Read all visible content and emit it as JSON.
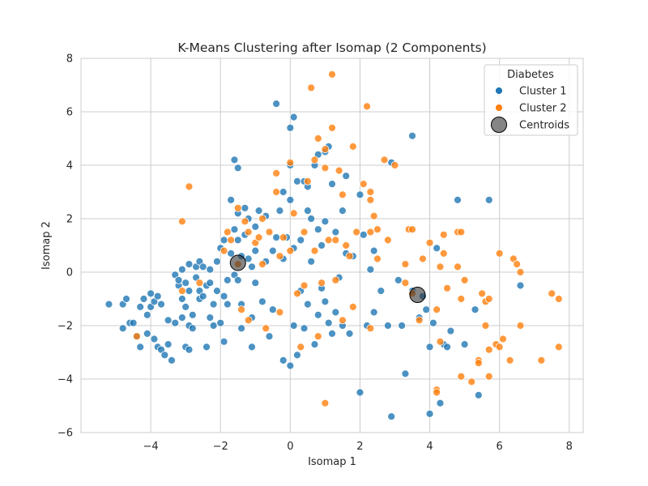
{
  "chart_data": {
    "type": "scatter",
    "title": "K-Means Clustering after Isomap (2 Components)",
    "xlabel": "Isomap 1",
    "ylabel": "Isomap 2",
    "xlim": [
      -6.0,
      8.4
    ],
    "ylim": [
      -6.0,
      8.0
    ],
    "xticks": [
      -4,
      -2,
      0,
      2,
      4,
      6,
      8
    ],
    "yticks": [
      -6,
      -4,
      -2,
      0,
      2,
      4,
      6,
      8
    ],
    "grid": true,
    "legend": {
      "title": "Diabetes",
      "position": "top-right"
    },
    "series": [
      {
        "name": "Cluster 1",
        "color": "#1f77b4",
        "points": [
          [
            -5.2,
            -1.2
          ],
          [
            -4.8,
            -1.2
          ],
          [
            -4.7,
            -1.0
          ],
          [
            -4.6,
            -1.9
          ],
          [
            -4.8,
            -2.1
          ],
          [
            -4.5,
            -1.9
          ],
          [
            -4.4,
            -2.4
          ],
          [
            -4.3,
            -1.3
          ],
          [
            -4.3,
            -2.8
          ],
          [
            -4.2,
            -1.0
          ],
          [
            -4.1,
            -1.6
          ],
          [
            -4.1,
            -2.3
          ],
          [
            -4.0,
            -0.8
          ],
          [
            -4.0,
            -1.3
          ],
          [
            -3.9,
            -2.5
          ],
          [
            -3.9,
            -1.1
          ],
          [
            -3.8,
            -0.9
          ],
          [
            -3.8,
            -2.8
          ],
          [
            -3.7,
            -2.9
          ],
          [
            -3.7,
            -1.2
          ],
          [
            -3.6,
            -3.1
          ],
          [
            -3.5,
            -2.7
          ],
          [
            -3.5,
            -1.8
          ],
          [
            -3.4,
            -3.3
          ],
          [
            -3.3,
            -0.1
          ],
          [
            -3.3,
            -1.9
          ],
          [
            -3.2,
            -0.5
          ],
          [
            -3.2,
            -0.3
          ],
          [
            -3.1,
            0.1
          ],
          [
            -3.1,
            -1.7
          ],
          [
            -3.1,
            -1.0
          ],
          [
            -3.0,
            -1.3
          ],
          [
            -3.0,
            -0.4
          ],
          [
            -3.0,
            -2.8
          ],
          [
            -2.9,
            0.3
          ],
          [
            -2.9,
            -2.9
          ],
          [
            -2.9,
            -0.7
          ],
          [
            -2.9,
            -2.0
          ],
          [
            -2.8,
            -1.6
          ],
          [
            -2.8,
            -2.1
          ],
          [
            -2.7,
            -0.2
          ],
          [
            -2.7,
            0.2
          ],
          [
            -2.6,
            0.4
          ],
          [
            -2.6,
            -0.7
          ],
          [
            -2.6,
            -1.0
          ],
          [
            -2.5,
            -0.9
          ],
          [
            -2.5,
            0.2
          ],
          [
            -2.4,
            -0.5
          ],
          [
            -2.4,
            -2.8
          ],
          [
            -2.3,
            -1.7
          ],
          [
            -2.3,
            -0.4
          ],
          [
            -2.3,
            0.1
          ],
          [
            -2.2,
            -1.2
          ],
          [
            -2.2,
            -2.0
          ],
          [
            -2.1,
            -0.7
          ],
          [
            -2.1,
            0.4
          ],
          [
            -2.0,
            -1.9
          ],
          [
            -2.0,
            0.9
          ],
          [
            -1.9,
            -0.9
          ],
          [
            -1.9,
            1.2
          ],
          [
            -1.9,
            -2.6
          ],
          [
            -1.8,
            -0.3
          ],
          [
            -1.8,
            -1.2
          ],
          [
            -1.7,
            2.7
          ],
          [
            -1.7,
            0.7
          ],
          [
            -1.6,
            4.2
          ],
          [
            -1.6,
            1.6
          ],
          [
            -1.6,
            -0.1
          ],
          [
            -1.5,
            3.9
          ],
          [
            -1.5,
            1.2
          ],
          [
            -1.5,
            2.2
          ],
          [
            -1.5,
            -0.3
          ],
          [
            -1.4,
            0.6
          ],
          [
            -1.4,
            -2.1
          ],
          [
            -1.4,
            -1.2
          ],
          [
            -1.3,
            2.4
          ],
          [
            -1.3,
            1.4
          ],
          [
            -1.2,
            2.0
          ],
          [
            -1.2,
            0.5
          ],
          [
            -1.1,
            -1.7
          ],
          [
            -1.1,
            0.2
          ],
          [
            -1.1,
            -2.8
          ],
          [
            -1.0,
            1.7
          ],
          [
            -1.0,
            0.8
          ],
          [
            -1.0,
            -0.4
          ],
          [
            -0.9,
            2.3
          ],
          [
            -0.8,
            -1.1
          ],
          [
            -0.7,
            2.1
          ],
          [
            -0.7,
            0.4
          ],
          [
            -0.6,
            -2.4
          ],
          [
            -0.5,
            -1.4
          ],
          [
            -0.5,
            0.8
          ],
          [
            -0.4,
            1.3
          ],
          [
            -0.4,
            6.3
          ],
          [
            -0.3,
            2.3
          ],
          [
            -0.2,
            3.0
          ],
          [
            -0.2,
            -3.3
          ],
          [
            -0.2,
            0.5
          ],
          [
            -0.1,
            1.3
          ],
          [
            0.0,
            5.4
          ],
          [
            0.0,
            4.0
          ],
          [
            0.0,
            2.7
          ],
          [
            0.0,
            -3.5
          ],
          [
            0.1,
            5.8
          ],
          [
            0.1,
            0.9
          ],
          [
            0.1,
            -2.0
          ],
          [
            0.2,
            3.4
          ],
          [
            0.2,
            -3.1
          ],
          [
            0.3,
            -0.7
          ],
          [
            0.3,
            1.2
          ],
          [
            0.4,
            3.4
          ],
          [
            0.4,
            -2.1
          ],
          [
            0.5,
            2.3
          ],
          [
            0.5,
            -1.2
          ],
          [
            0.5,
            3.2
          ],
          [
            0.6,
            2.0
          ],
          [
            0.6,
            0.4
          ],
          [
            0.7,
            4.0
          ],
          [
            0.7,
            -2.7
          ],
          [
            0.8,
            4.4
          ],
          [
            0.8,
            1.6
          ],
          [
            0.8,
            -1.6
          ],
          [
            0.9,
            1.0
          ],
          [
            0.9,
            -0.6
          ],
          [
            1.0,
            4.5
          ],
          [
            1.0,
            -1.1
          ],
          [
            1.0,
            1.9
          ],
          [
            1.1,
            4.7
          ],
          [
            1.1,
            -1.9
          ],
          [
            1.2,
            3.3
          ],
          [
            1.2,
            -2.3
          ],
          [
            1.3,
            1.5
          ],
          [
            1.3,
            -1.5
          ],
          [
            1.4,
            -0.2
          ],
          [
            1.5,
            2.3
          ],
          [
            1.5,
            -2.0
          ],
          [
            1.6,
            3.6
          ],
          [
            1.6,
            0.7
          ],
          [
            1.7,
            -2.3
          ],
          [
            1.8,
            0.6
          ],
          [
            2.0,
            2.9
          ],
          [
            2.0,
            -4.5
          ],
          [
            2.1,
            1.4
          ],
          [
            2.2,
            -2.0
          ],
          [
            2.3,
            0.1
          ],
          [
            2.4,
            -1.5
          ],
          [
            2.4,
            0.8
          ],
          [
            2.6,
            -0.7
          ],
          [
            2.8,
            -2.0
          ],
          [
            2.9,
            4.1
          ],
          [
            2.9,
            -5.4
          ],
          [
            3.1,
            -0.3
          ],
          [
            3.2,
            -2.0
          ],
          [
            3.3,
            -3.8
          ],
          [
            3.5,
            5.1
          ],
          [
            3.5,
            -0.7
          ],
          [
            3.7,
            -1.7
          ],
          [
            3.8,
            -0.9
          ],
          [
            3.9,
            -1.4
          ],
          [
            4.0,
            -5.3
          ],
          [
            4.0,
            -2.8
          ],
          [
            4.1,
            -1.9
          ],
          [
            4.2,
            0.9
          ],
          [
            4.3,
            -4.9
          ],
          [
            4.4,
            -2.7
          ],
          [
            4.5,
            -2.8
          ],
          [
            4.6,
            -2.2
          ],
          [
            4.8,
            2.7
          ],
          [
            5.0,
            -2.7
          ],
          [
            5.3,
            -1.4
          ],
          [
            5.4,
            -4.6
          ],
          [
            5.7,
            2.7
          ],
          [
            6.6,
            -0.5
          ]
        ]
      },
      {
        "name": "Cluster 2",
        "color": "#ff7f0e",
        "points": [
          [
            -4.4,
            -2.4
          ],
          [
            -3.1,
            1.9
          ],
          [
            -3.1,
            -0.7
          ],
          [
            -2.9,
            3.2
          ],
          [
            -2.6,
            -0.4
          ],
          [
            -1.9,
            0.8
          ],
          [
            -1.8,
            1.5
          ],
          [
            -1.7,
            1.2
          ],
          [
            -1.5,
            0.3
          ],
          [
            -1.5,
            2.4
          ],
          [
            -1.4,
            -1.4
          ],
          [
            -1.3,
            1.9
          ],
          [
            -1.2,
            1.5
          ],
          [
            -1.2,
            -1.8
          ],
          [
            -1.0,
            1.1
          ],
          [
            -0.9,
            1.3
          ],
          [
            -0.8,
            2.0
          ],
          [
            -0.8,
            0.3
          ],
          [
            -0.7,
            -2.1
          ],
          [
            -0.6,
            1.5
          ],
          [
            -0.4,
            3.0
          ],
          [
            -0.4,
            3.7
          ],
          [
            -0.3,
            0.6
          ],
          [
            -0.3,
            -1.5
          ],
          [
            -0.2,
            1.3
          ],
          [
            0.0,
            4.1
          ],
          [
            0.0,
            0.8
          ],
          [
            0.1,
            2.2
          ],
          [
            0.2,
            -0.8
          ],
          [
            0.3,
            -2.8
          ],
          [
            0.4,
            1.5
          ],
          [
            0.4,
            -0.5
          ],
          [
            0.5,
            3.4
          ],
          [
            0.6,
            6.9
          ],
          [
            0.7,
            4.2
          ],
          [
            0.7,
            0.8
          ],
          [
            0.8,
            5.0
          ],
          [
            0.8,
            -2.4
          ],
          [
            0.9,
            -0.4
          ],
          [
            1.0,
            -4.9
          ],
          [
            1.0,
            4.6
          ],
          [
            1.0,
            3.9
          ],
          [
            1.1,
            1.2
          ],
          [
            1.2,
            7.4
          ],
          [
            1.2,
            5.4
          ],
          [
            1.3,
            1.2
          ],
          [
            1.3,
            -0.3
          ],
          [
            1.4,
            3.8
          ],
          [
            1.5,
            -1.8
          ],
          [
            1.5,
            2.9
          ],
          [
            1.6,
            1.0
          ],
          [
            1.7,
            0.6
          ],
          [
            1.8,
            4.7
          ],
          [
            1.8,
            -1.3
          ],
          [
            1.9,
            1.5
          ],
          [
            2.1,
            3.3
          ],
          [
            2.2,
            6.2
          ],
          [
            2.3,
            3.0
          ],
          [
            2.3,
            2.7
          ],
          [
            2.3,
            1.5
          ],
          [
            2.3,
            -2.1
          ],
          [
            2.4,
            2.1
          ],
          [
            2.5,
            1.6
          ],
          [
            2.5,
            0.5
          ],
          [
            2.7,
            4.2
          ],
          [
            2.8,
            1.2
          ],
          [
            3.0,
            4.0
          ],
          [
            3.3,
            0.3
          ],
          [
            3.3,
            -0.4
          ],
          [
            3.4,
            1.6
          ],
          [
            3.5,
            1.6
          ],
          [
            3.5,
            -0.8
          ],
          [
            3.7,
            -1.8
          ],
          [
            3.8,
            0.5
          ],
          [
            4.0,
            1.1
          ],
          [
            4.2,
            -1.4
          ],
          [
            4.2,
            -4.4
          ],
          [
            4.2,
            -4.5
          ],
          [
            4.3,
            0.2
          ],
          [
            4.3,
            -2.6
          ],
          [
            4.4,
            0.7
          ],
          [
            4.4,
            1.4
          ],
          [
            4.5,
            -0.6
          ],
          [
            4.8,
            1.5
          ],
          [
            4.8,
            0.2
          ],
          [
            4.9,
            1.5
          ],
          [
            4.9,
            -1.0
          ],
          [
            4.9,
            -3.9
          ],
          [
            5.0,
            -0.3
          ],
          [
            5.2,
            -4.1
          ],
          [
            5.4,
            -3.3
          ],
          [
            5.4,
            -3.4
          ],
          [
            5.5,
            -0.8
          ],
          [
            5.6,
            -1.1
          ],
          [
            5.6,
            -2.0
          ],
          [
            5.7,
            -1.0
          ],
          [
            5.7,
            -3.9
          ],
          [
            5.7,
            -2.9
          ],
          [
            5.9,
            -2.7
          ],
          [
            6.0,
            -2.8
          ],
          [
            6.0,
            0.7
          ],
          [
            6.1,
            -2.5
          ],
          [
            6.3,
            -3.3
          ],
          [
            6.4,
            0.5
          ],
          [
            6.5,
            0.3
          ],
          [
            6.6,
            0.0
          ],
          [
            6.6,
            -2.0
          ],
          [
            7.2,
            -3.3
          ],
          [
            7.5,
            -0.8
          ],
          [
            7.7,
            -1.0
          ],
          [
            7.7,
            -2.8
          ]
        ]
      }
    ],
    "centroids": {
      "name": "Centroids",
      "color": "#333333",
      "points": [
        [
          -1.5,
          0.35
        ],
        [
          3.65,
          -0.85
        ]
      ]
    }
  }
}
